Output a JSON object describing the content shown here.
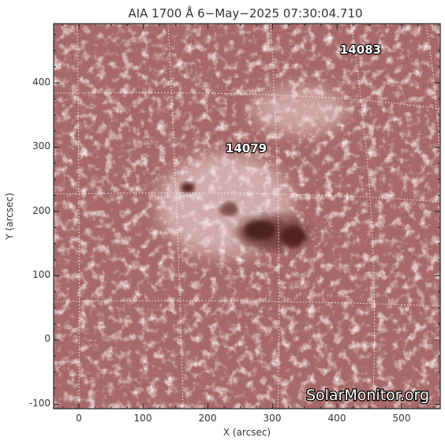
{
  "title": "AIA 1700 Å   6−May−2025 07:30:04.710",
  "axes": {
    "xlabel": "X (arcsec)",
    "ylabel": "Y (arcsec)",
    "xticks": [
      "0",
      "100",
      "200",
      "300",
      "400",
      "500"
    ],
    "yticks": [
      "-100",
      "0",
      "100",
      "200",
      "300",
      "400"
    ]
  },
  "regions": [
    {
      "label": "14079",
      "x_arcsec": 270,
      "y_arcsec": 295
    },
    {
      "label": "14083",
      "x_arcsec": 440,
      "y_arcsec": 445
    }
  ],
  "watermark": "SolarMonitor.org",
  "colors": {
    "disk": "#a86a6a",
    "bright": "#eed8d8",
    "dark": "#5a2828",
    "grid": "#ffffff"
  }
}
